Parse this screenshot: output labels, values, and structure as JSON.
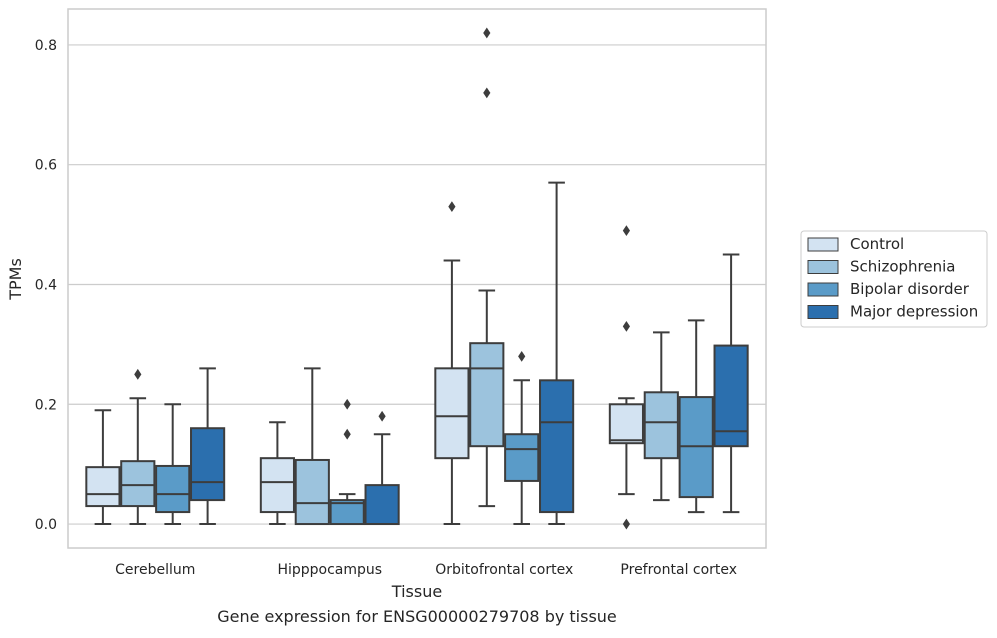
{
  "chart_data": {
    "type": "box",
    "title": "",
    "xlabel": "Tissue",
    "ylabel": "TPMs",
    "caption": "Gene expression for ENSG00000279708 by tissue",
    "ylim": [
      -0.04,
      0.86
    ],
    "yticks": [
      0.0,
      0.2,
      0.4,
      0.6,
      0.8
    ],
    "ytick_labels": [
      "0.0",
      "0.2",
      "0.4",
      "0.6",
      "0.8"
    ],
    "grid": "horizontal",
    "legend_position": "right",
    "categories": [
      "Cerebellum",
      "Hipppocampus",
      "Orbitofrontal cortex",
      "Prefrontal cortex"
    ],
    "series": [
      {
        "name": "Control",
        "color": "#d3e3f2",
        "boxes": [
          {
            "whislo": 0.0,
            "q1": 0.03,
            "med": 0.05,
            "q3": 0.095,
            "whishi": 0.19,
            "fliers": []
          },
          {
            "whislo": 0.0,
            "q1": 0.02,
            "med": 0.07,
            "q3": 0.11,
            "whishi": 0.17,
            "fliers": []
          },
          {
            "whislo": 0.0,
            "q1": 0.11,
            "med": 0.18,
            "q3": 0.26,
            "whishi": 0.44,
            "fliers": [
              0.53
            ]
          },
          {
            "whislo": 0.05,
            "q1": 0.135,
            "med": 0.14,
            "q3": 0.2,
            "whishi": 0.21,
            "fliers": [
              0.0,
              0.33,
              0.49
            ]
          }
        ]
      },
      {
        "name": "Schizophrenia",
        "color": "#9cc3dd",
        "boxes": [
          {
            "whislo": 0.0,
            "q1": 0.03,
            "med": 0.065,
            "q3": 0.105,
            "whishi": 0.21,
            "fliers": [
              0.25
            ]
          },
          {
            "whislo": 0.0,
            "q1": 0.0,
            "med": 0.035,
            "q3": 0.107,
            "whishi": 0.26,
            "fliers": []
          },
          {
            "whislo": 0.03,
            "q1": 0.13,
            "med": 0.26,
            "q3": 0.302,
            "whishi": 0.39,
            "fliers": [
              0.72,
              0.82
            ]
          },
          {
            "whislo": 0.04,
            "q1": 0.11,
            "med": 0.17,
            "q3": 0.22,
            "whishi": 0.32,
            "fliers": []
          }
        ]
      },
      {
        "name": "Bipolar disorder",
        "color": "#5a9bc8",
        "boxes": [
          {
            "whislo": 0.0,
            "q1": 0.02,
            "med": 0.05,
            "q3": 0.097,
            "whishi": 0.2,
            "fliers": []
          },
          {
            "whislo": 0.0,
            "q1": 0.0,
            "med": 0.035,
            "q3": 0.04,
            "whishi": 0.05,
            "fliers": [
              0.15,
              0.2
            ]
          },
          {
            "whislo": 0.0,
            "q1": 0.072,
            "med": 0.125,
            "q3": 0.15,
            "whishi": 0.24,
            "fliers": [
              0.28
            ]
          },
          {
            "whislo": 0.02,
            "q1": 0.045,
            "med": 0.13,
            "q3": 0.212,
            "whishi": 0.34,
            "fliers": []
          }
        ]
      },
      {
        "name": "Major depression",
        "color": "#2b6fae",
        "boxes": [
          {
            "whislo": 0.0,
            "q1": 0.04,
            "med": 0.07,
            "q3": 0.16,
            "whishi": 0.26,
            "fliers": []
          },
          {
            "whislo": 0.0,
            "q1": 0.0,
            "med": 0.0,
            "q3": 0.065,
            "whishi": 0.15,
            "fliers": [
              0.18
            ]
          },
          {
            "whislo": 0.0,
            "q1": 0.02,
            "med": 0.17,
            "q3": 0.24,
            "whishi": 0.57,
            "fliers": []
          },
          {
            "whislo": 0.02,
            "q1": 0.13,
            "med": 0.155,
            "q3": 0.298,
            "whishi": 0.45,
            "fliers": []
          }
        ]
      }
    ]
  }
}
